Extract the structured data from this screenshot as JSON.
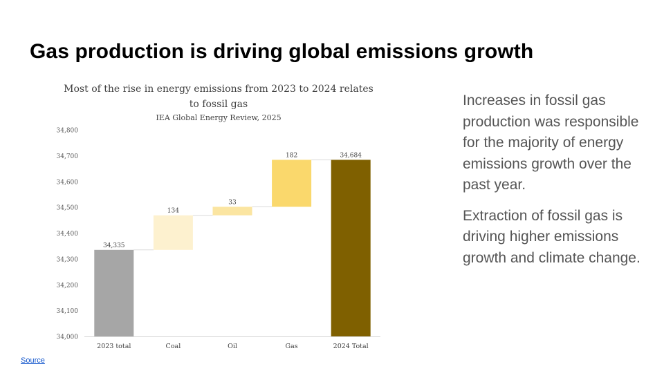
{
  "slide": {
    "title": "Gas production is driving global emissions growth",
    "paragraphs": [
      "Increases in fossil gas production was responsible for the majority of energy emissions growth over the past year.",
      "Extraction of fossil gas is driving higher emissions growth and climate change."
    ],
    "source_link": "Source"
  },
  "chart_data": {
    "type": "bar",
    "subtype": "waterfall",
    "title_lines": [
      "Most of the rise in energy emissions from 2023 to 2024 relates",
      "to fossil gas"
    ],
    "subtitle": "IEA Global Energy Review, 2025",
    "xlabel": "",
    "ylabel": "",
    "ylim": [
      34000,
      34800
    ],
    "yticks": [
      34000,
      34100,
      34200,
      34300,
      34400,
      34500,
      34600,
      34700,
      34800
    ],
    "ytick_labels": [
      "34,000",
      "34,100",
      "34,200",
      "34,300",
      "34,400",
      "34,500",
      "34,600",
      "34,700",
      "34,800"
    ],
    "grid": false,
    "categories": [
      "2023 total",
      "Coal",
      "Oil",
      "Gas",
      "2024 Total"
    ],
    "kinds": [
      "total",
      "increase",
      "increase",
      "increase",
      "total"
    ],
    "values": [
      34335,
      134,
      33,
      182,
      34684
    ],
    "data_labels": [
      "34,335",
      "134",
      "33",
      "182",
      "34,684"
    ],
    "colors": [
      "#a6a6a6",
      "#fdf1cf",
      "#fbe5a1",
      "#fad86c",
      "#7f6000"
    ]
  }
}
